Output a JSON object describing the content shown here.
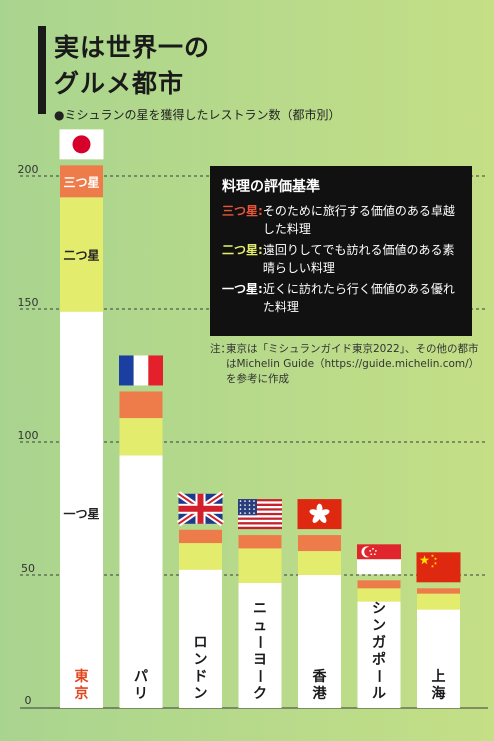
{
  "header": {
    "title_line1": "実は世界一の",
    "title_line2": "グルメ都市",
    "subtitle": "●ミシュランの星を獲得したレストラン数（都市別）"
  },
  "criteria": {
    "title": "料理の評価基準",
    "items": [
      {
        "label": "三つ星",
        "text": "そのために旅行する価値のある卓越した料理",
        "color": "#e8563a"
      },
      {
        "label": "二つ星",
        "text": "遠回りしてでも訪れる価値のある素晴らしい料理",
        "color": "#e3ec6d"
      },
      {
        "label": "一つ星",
        "text": "近くに訪れたら行く価値のある優れた料理",
        "color": "#ffffff"
      }
    ]
  },
  "note": {
    "prefix": "注：",
    "text": "東京は「ミシュランガイド東京2022」、その他の都市はMichelin Guide（https://guide.michelin.com/）を参考に作成"
  },
  "chart_data": {
    "type": "bar",
    "stacked": true,
    "orientation": "vertical",
    "categories": [
      "東京",
      "パリ",
      "ロンドン",
      "ニューヨーク",
      "香港",
      "シンガポール",
      "上海"
    ],
    "flags": [
      "japan-flag",
      "france-flag",
      "uk-flag",
      "usa-flag",
      "hongkong-flag",
      "singapore-flag",
      "china-flag"
    ],
    "series": [
      {
        "name": "一つ星",
        "values": [
          149,
          95,
          52,
          47,
          50,
          40,
          37
        ],
        "color": "#ffffff"
      },
      {
        "name": "二つ星",
        "values": [
          43,
          14,
          10,
          13,
          9,
          5,
          6
        ],
        "color": "#e3ec6d"
      },
      {
        "name": "三つ星",
        "values": [
          12,
          10,
          5,
          5,
          6,
          3,
          2
        ],
        "color": "#ee7b4a"
      }
    ],
    "segment_labels": [
      {
        "bar": 0,
        "series": 2,
        "text": "三つ星"
      },
      {
        "bar": 0,
        "series": 1,
        "text": "二つ星"
      },
      {
        "bar": 0,
        "series": 0,
        "text": "一つ星"
      }
    ],
    "y_ticks": [
      0,
      50,
      100,
      150,
      200
    ],
    "ylim": [
      0,
      215
    ],
    "grid": true,
    "highlight_category_color": "#e0461f"
  }
}
